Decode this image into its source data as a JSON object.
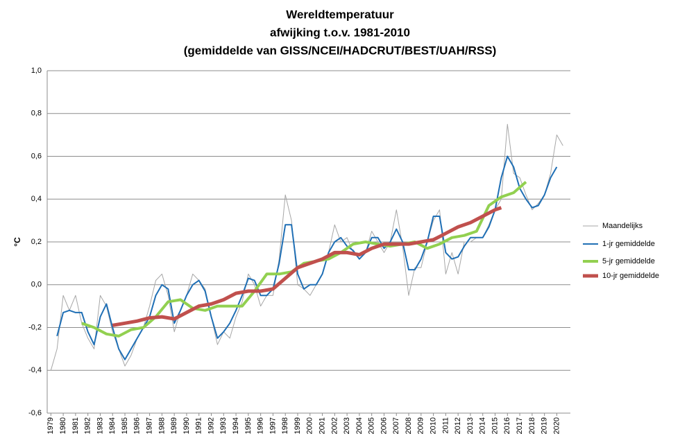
{
  "chart_data": {
    "type": "line",
    "title": [
      "Wereldtemperatuur",
      "afwijking t.o.v. 1981-2010",
      "(gemiddelde van GISS/NCEI/HADCRUT/BEST/UAH/RSS)"
    ],
    "y_label": "°C",
    "xlim": [
      1978.7,
      2021.1
    ],
    "xticks": [
      1979,
      1980,
      1981,
      1982,
      1983,
      1984,
      1985,
      1986,
      1987,
      1988,
      1989,
      1990,
      1991,
      1992,
      1993,
      1994,
      1995,
      1996,
      1997,
      1998,
      1999,
      2000,
      2001,
      2002,
      2003,
      2004,
      2005,
      2006,
      2007,
      2008,
      2009,
      2010,
      2011,
      2012,
      2013,
      2014,
      2015,
      2016,
      2017,
      2018,
      2019,
      2020
    ],
    "ylim": [
      -0.6,
      1.0
    ],
    "yticks": [
      {
        "value": -0.6,
        "label": "-0,6"
      },
      {
        "value": -0.4,
        "label": "-0,4"
      },
      {
        "value": -0.2,
        "label": "-0,2"
      },
      {
        "value": 0,
        "label": "0,0"
      },
      {
        "value": 0.2,
        "label": "0,2"
      },
      {
        "value": 0.4,
        "label": "0,4"
      },
      {
        "value": 0.6,
        "label": "0,6"
      },
      {
        "value": 0.8,
        "label": "0,8"
      },
      {
        "value": 1.0,
        "label": "1,0"
      }
    ],
    "grid": true,
    "legend": "right",
    "series": [
      {
        "name": "Maandelijks",
        "color": "#a6a6a6",
        "width": 1,
        "x": [
          1979,
          1979.5,
          1980,
          1980.5,
          1981,
          1981.5,
          1982,
          1982.5,
          1983,
          1983.5,
          1984,
          1984.5,
          1985,
          1985.5,
          1986,
          1986.5,
          1987,
          1987.5,
          1988,
          1988.5,
          1989,
          1989.5,
          1990,
          1990.5,
          1991,
          1991.5,
          1992,
          1992.5,
          1993,
          1993.5,
          1994,
          1994.5,
          1995,
          1995.5,
          1996,
          1996.5,
          1997,
          1997.5,
          1998,
          1998.5,
          1999,
          1999.5,
          2000,
          2000.5,
          2001,
          2001.5,
          2002,
          2002.5,
          2003,
          2003.5,
          2004,
          2004.5,
          2005,
          2005.5,
          2006,
          2006.5,
          2007,
          2007.5,
          2008,
          2008.5,
          2009,
          2009.5,
          2010,
          2010.5,
          2011,
          2011.5,
          2012,
          2012.5,
          2013,
          2013.5,
          2014,
          2014.5,
          2015,
          2015.5,
          2016,
          2016.5,
          2017,
          2017.5,
          2018,
          2018.5,
          2019,
          2019.5,
          2020,
          2020.5
        ],
        "values": [
          -0.4,
          -0.3,
          -0.05,
          -0.12,
          -0.05,
          -0.18,
          -0.25,
          -0.3,
          -0.05,
          -0.1,
          -0.22,
          -0.3,
          -0.38,
          -0.33,
          -0.25,
          -0.2,
          -0.1,
          0.02,
          0.05,
          -0.05,
          -0.22,
          -0.12,
          -0.05,
          0.05,
          0.02,
          -0.02,
          -0.15,
          -0.28,
          -0.22,
          -0.25,
          -0.15,
          -0.08,
          0.05,
          0.0,
          -0.1,
          -0.05,
          -0.05,
          0.12,
          0.42,
          0.3,
          0.0,
          -0.02,
          -0.05,
          0.0,
          0.05,
          0.15,
          0.28,
          0.2,
          0.22,
          0.15,
          0.12,
          0.15,
          0.25,
          0.2,
          0.15,
          0.2,
          0.35,
          0.18,
          -0.05,
          0.08,
          0.08,
          0.2,
          0.3,
          0.35,
          0.05,
          0.15,
          0.05,
          0.2,
          0.2,
          0.22,
          0.22,
          0.28,
          0.35,
          0.4,
          0.75,
          0.52,
          0.5,
          0.42,
          0.35,
          0.38,
          0.42,
          0.52,
          0.7,
          0.65
        ]
      },
      {
        "name": "1-jr gemiddelde",
        "color": "#1f6fb5",
        "width": 2,
        "x": [
          1979.5,
          1980,
          1980.5,
          1981,
          1981.5,
          1982,
          1982.5,
          1983,
          1983.5,
          1984,
          1984.5,
          1985,
          1985.5,
          1986,
          1986.5,
          1987,
          1987.5,
          1988,
          1988.5,
          1989,
          1989.5,
          1990,
          1990.5,
          1991,
          1991.5,
          1992,
          1992.5,
          1993,
          1993.5,
          1994,
          1994.5,
          1995,
          1995.5,
          1996,
          1996.5,
          1997,
          1997.5,
          1998,
          1998.5,
          1999,
          1999.5,
          2000,
          2000.5,
          2001,
          2001.5,
          2002,
          2002.5,
          2003,
          2003.5,
          2004,
          2004.5,
          2005,
          2005.5,
          2006,
          2006.5,
          2007,
          2007.5,
          2008,
          2008.5,
          2009,
          2009.5,
          2010,
          2010.5,
          2011,
          2011.5,
          2012,
          2012.5,
          2013,
          2013.5,
          2014,
          2014.5,
          2015,
          2015.5,
          2016,
          2016.5,
          2017,
          2017.5,
          2018,
          2018.5,
          2019,
          2019.5,
          2020
        ],
        "values": [
          -0.24,
          -0.13,
          -0.12,
          -0.13,
          -0.13,
          -0.22,
          -0.28,
          -0.15,
          -0.09,
          -0.2,
          -0.3,
          -0.35,
          -0.3,
          -0.25,
          -0.2,
          -0.15,
          -0.05,
          0.0,
          -0.02,
          -0.18,
          -0.12,
          -0.05,
          0.0,
          0.02,
          -0.03,
          -0.15,
          -0.25,
          -0.22,
          -0.18,
          -0.12,
          -0.05,
          0.03,
          0.02,
          -0.05,
          -0.05,
          -0.02,
          0.1,
          0.28,
          0.28,
          0.05,
          -0.02,
          0.0,
          0.0,
          0.05,
          0.15,
          0.2,
          0.22,
          0.18,
          0.16,
          0.12,
          0.15,
          0.22,
          0.22,
          0.17,
          0.2,
          0.26,
          0.2,
          0.07,
          0.07,
          0.12,
          0.2,
          0.32,
          0.32,
          0.15,
          0.12,
          0.13,
          0.18,
          0.22,
          0.22,
          0.22,
          0.27,
          0.35,
          0.5,
          0.6,
          0.55,
          0.45,
          0.4,
          0.36,
          0.37,
          0.42,
          0.5,
          0.55
        ]
      },
      {
        "name": "5-jr gemiddelde",
        "color": "#92d050",
        "width": 4,
        "x": [
          1981.5,
          1982.5,
          1983.5,
          1984.5,
          1985.5,
          1986.5,
          1987.5,
          1988.5,
          1989.5,
          1990.5,
          1991.5,
          1992.5,
          1993.5,
          1994.5,
          1995.5,
          1996.5,
          1997.5,
          1998.5,
          1999.5,
          2000.5,
          2001.5,
          2002.5,
          2003.5,
          2004.5,
          2005.5,
          2006.5,
          2007.5,
          2008.5,
          2009.5,
          2010.5,
          2011.5,
          2012.5,
          2013.5,
          2014.5,
          2015.5,
          2016.5,
          2017.5
        ],
        "values": [
          -0.18,
          -0.2,
          -0.23,
          -0.24,
          -0.21,
          -0.2,
          -0.15,
          -0.08,
          -0.07,
          -0.11,
          -0.12,
          -0.1,
          -0.1,
          -0.1,
          -0.03,
          0.05,
          0.05,
          0.06,
          0.1,
          0.11,
          0.12,
          0.15,
          0.19,
          0.2,
          0.19,
          0.18,
          0.19,
          0.2,
          0.17,
          0.19,
          0.22,
          0.23,
          0.25,
          0.37,
          0.41,
          0.43,
          0.48
        ]
      },
      {
        "name": "10-jr gemiddelde",
        "color": "#c0504d",
        "width": 5,
        "x": [
          1984,
          1985,
          1986,
          1987,
          1988,
          1989,
          1990,
          1991,
          1992,
          1993,
          1994,
          1995,
          1996,
          1997,
          1998,
          1999,
          2000,
          2001,
          2002,
          2003,
          2004,
          2005,
          2006,
          2007,
          2008,
          2009,
          2010,
          2011,
          2012,
          2013,
          2014,
          2015,
          2015.5
        ],
        "values": [
          -0.19,
          -0.18,
          -0.17,
          -0.155,
          -0.15,
          -0.16,
          -0.13,
          -0.1,
          -0.09,
          -0.07,
          -0.04,
          -0.03,
          -0.03,
          -0.02,
          0.03,
          0.08,
          0.1,
          0.12,
          0.15,
          0.15,
          0.14,
          0.17,
          0.19,
          0.19,
          0.19,
          0.2,
          0.21,
          0.24,
          0.27,
          0.29,
          0.32,
          0.35,
          0.36
        ]
      }
    ]
  }
}
